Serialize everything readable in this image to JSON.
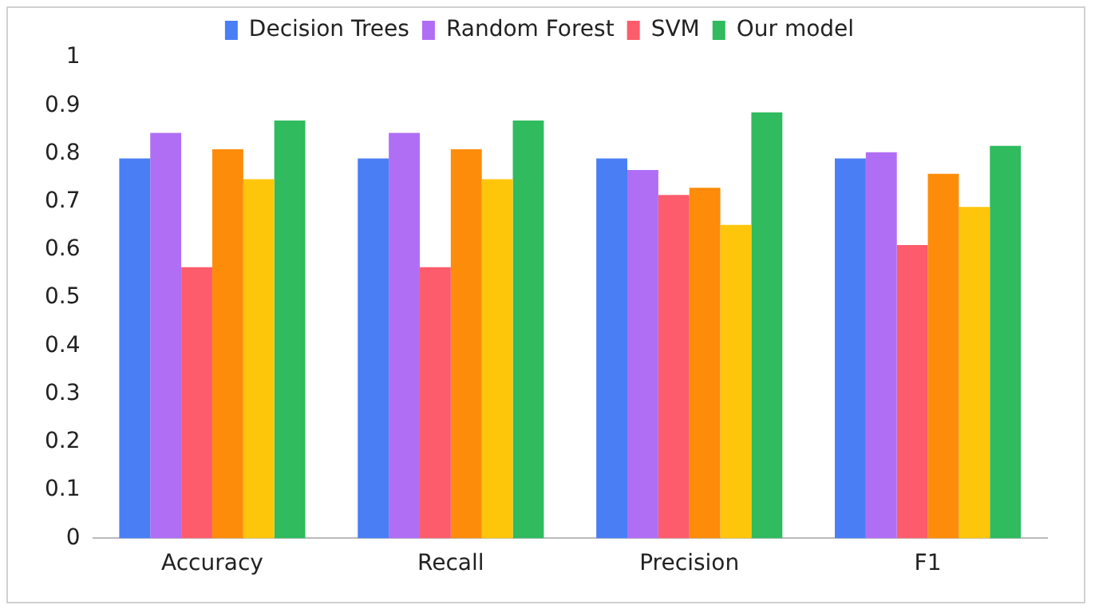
{
  "chart_data": {
    "type": "bar",
    "categories": [
      "Accuracy",
      "Recall",
      "Precision",
      "F1"
    ],
    "series": [
      {
        "name": "Decision Trees",
        "color": "#4a7ef5",
        "values": [
          0.79,
          0.79,
          0.79,
          0.79
        ]
      },
      {
        "name": "Random Forest",
        "color": "#b06ef5",
        "values": [
          0.843,
          0.843,
          0.766,
          0.803
        ]
      },
      {
        "name": "SVM",
        "color": "#fc5c6b",
        "values": [
          0.564,
          0.564,
          0.714,
          0.61
        ]
      },
      {
        "color": "#fd8c0a",
        "values": [
          0.809,
          0.809,
          0.729,
          0.758
        ]
      },
      {
        "color": "#fdc60a",
        "values": [
          0.747,
          0.747,
          0.652,
          0.689
        ]
      },
      {
        "name": "Our model",
        "color": "#2fbb5e",
        "values": [
          0.869,
          0.869,
          0.886,
          0.816
        ]
      }
    ],
    "ylim": [
      0,
      1
    ],
    "yticks": [
      0,
      0.1,
      0.2,
      0.3,
      0.4,
      0.5,
      0.6,
      0.7,
      0.8,
      0.9,
      1
    ],
    "grid": false,
    "legend": "top"
  }
}
